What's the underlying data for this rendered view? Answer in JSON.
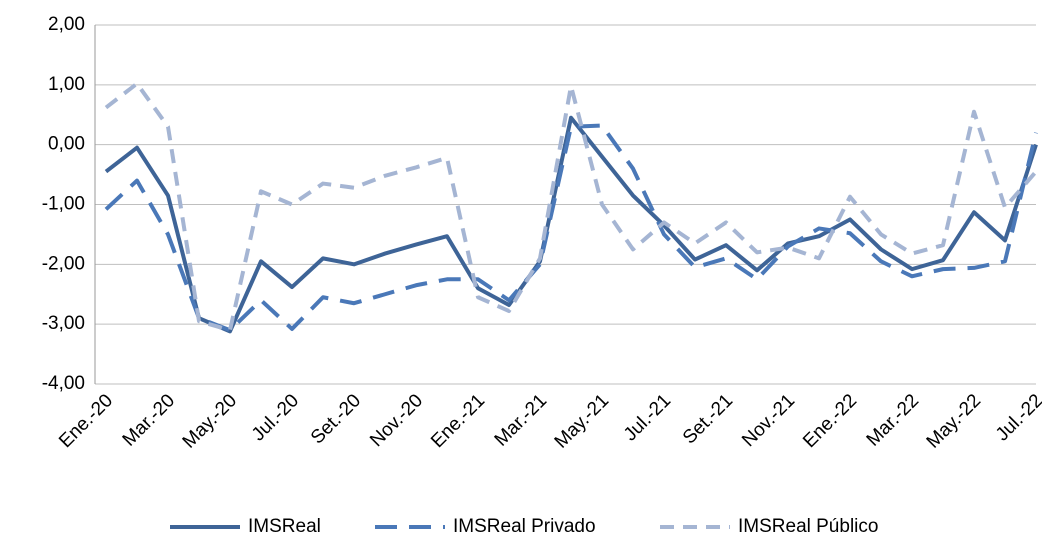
{
  "chart_data": {
    "type": "line",
    "categories": [
      "Ene.-20",
      null,
      "Mar.-20",
      null,
      "May.-20",
      null,
      "Jul.-20",
      null,
      "Set.-20",
      null,
      "Nov.-20",
      null,
      "Ene.-21",
      null,
      "Mar.-21",
      null,
      "May.-21",
      null,
      "Jul.-21",
      null,
      "Set.-21",
      null,
      "Nov.-21",
      null,
      "Ene.-22",
      null,
      "Mar.-22",
      null,
      "May.-22",
      null,
      "Jul.-22"
    ],
    "series": [
      {
        "name": "IMSReal",
        "color": "#3e6497",
        "dash": "solid",
        "values": [
          -0.45,
          -0.05,
          -0.85,
          -2.9,
          -3.12,
          -1.95,
          -2.38,
          -1.9,
          -2.0,
          -1.82,
          -1.67,
          -1.53,
          -2.4,
          -2.68,
          -1.95,
          0.45,
          -0.2,
          -0.85,
          -1.35,
          -1.92,
          -1.68,
          -2.1,
          -1.65,
          -1.53,
          -1.25,
          -1.75,
          -2.08,
          -1.93,
          -1.13,
          -1.6,
          0.0
        ]
      },
      {
        "name": "IMSReal Privado",
        "color": "#4a78b8",
        "dash": "long",
        "values": [
          -1.08,
          -0.6,
          -1.5,
          -2.9,
          -3.1,
          -2.6,
          -3.08,
          -2.55,
          -2.65,
          -2.5,
          -2.35,
          -2.25,
          -2.25,
          -2.6,
          -2.0,
          0.3,
          0.32,
          -0.4,
          -1.5,
          -2.05,
          -1.9,
          -2.25,
          -1.7,
          -1.4,
          -1.48,
          -1.95,
          -2.2,
          -2.08,
          -2.06,
          -1.95,
          0.2
        ]
      },
      {
        "name": "IMSReal Público",
        "color": "#a5b5d3",
        "dash": "short",
        "values": [
          0.62,
          1.02,
          0.3,
          -2.95,
          -3.1,
          -0.78,
          -1.0,
          -0.65,
          -0.72,
          -0.52,
          -0.38,
          -0.22,
          -2.55,
          -2.78,
          -1.9,
          0.98,
          -1.0,
          -1.75,
          -1.3,
          -1.65,
          -1.3,
          -1.8,
          -1.72,
          -1.9,
          -0.87,
          -1.5,
          -1.82,
          -1.68,
          0.55,
          -1.05,
          -0.45
        ]
      }
    ],
    "ylim": [
      -4,
      2
    ],
    "yticks": [
      {
        "value": -4,
        "label": "-4,00"
      },
      {
        "value": -3,
        "label": "-3,00"
      },
      {
        "value": -2,
        "label": "-2,00"
      },
      {
        "value": -1,
        "label": "-1,00"
      },
      {
        "value": 0,
        "label": "0,00"
      },
      {
        "value": 1,
        "label": "1,00"
      },
      {
        "value": 2,
        "label": "2,00"
      }
    ],
    "grid": true,
    "legend": "bottom"
  }
}
